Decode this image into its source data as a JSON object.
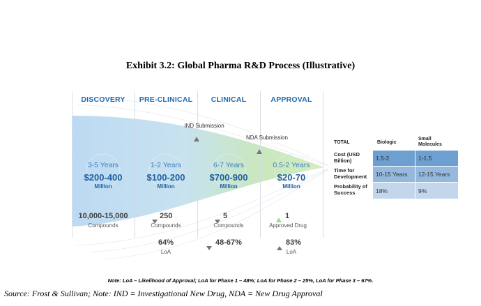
{
  "exhibit_title": "Exhibit 3.2: Global Pharma R&D Process (Illustrative)",
  "phases": [
    {
      "name": "DISCOVERY",
      "years": "3-5 Years",
      "cost": "$200-400",
      "unit": "Million",
      "count": "10,000-15,000",
      "count_label": "Compounds"
    },
    {
      "name": "PRE-CLINICAL",
      "years": "1-2 Years",
      "cost": "$100-200",
      "unit": "Million",
      "count": "250",
      "count_label": "Compounds",
      "loa": "64%",
      "loa_label": "LoA"
    },
    {
      "name": "CLINICAL",
      "years": "6-7 Years",
      "cost": "$700-900",
      "unit": "Million",
      "count": "5",
      "count_label": "Compounds",
      "loa": "48-67%"
    },
    {
      "name": "APPROVAL",
      "years": "0.5-2 Years",
      "cost": "$20-70",
      "unit": "Million",
      "count": "1",
      "count_label": "Approved Drug",
      "loa": "83%",
      "loa_label": "LoA"
    }
  ],
  "milestones": {
    "ind": "IND Submission",
    "nda": "NDA Submission"
  },
  "table": {
    "headers": [
      "TOTAL",
      "Biologic",
      "Small Molecules"
    ],
    "rows": [
      {
        "label": "Cost (USD Billion)",
        "biologic": "1.5-2",
        "small": "1-1.5"
      },
      {
        "label": "Time for Development",
        "biologic": "10-15 Years",
        "small": "12-15 Years"
      },
      {
        "label": "Probability of Success",
        "biologic": "18%",
        "small": "9%"
      }
    ],
    "colors": [
      "#6e9fd1",
      "#94b8de",
      "#c2d6ec"
    ]
  },
  "note": "Note: LoA – Likelihood of Approval; LoA for Phase 1 – 48%; LoA for Phase 2 – 25%, LoA for Phase 3 – 67%.",
  "source": "Source: Frost & Sullivan; Note: IND = Investigational New Drug, NDA = New Drug Approval",
  "colors": {
    "funnel_start": "#bfdcf3",
    "funnel_end": "#c5e6b0",
    "heading": "#1f6bb0"
  }
}
